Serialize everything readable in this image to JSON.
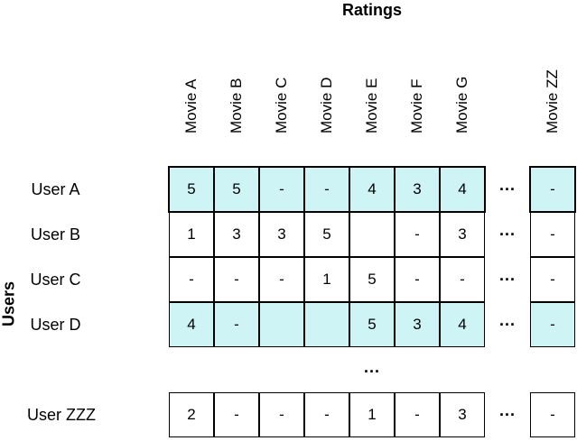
{
  "title_top": "Ratings",
  "title_left": "Users",
  "columns": [
    "Movie A",
    "Movie B",
    "Movie C",
    "Movie D",
    "Movie E",
    "Movie F",
    "Movie G"
  ],
  "last_column": "Movie ZZ",
  "ellipsis": "...",
  "highlight_color": "#cff4f5",
  "rows": [
    {
      "label": "User A",
      "values": [
        "5",
        "5",
        "-",
        "-",
        "4",
        "3",
        "4"
      ],
      "last": "-",
      "highlight": true,
      "bold_box": true
    },
    {
      "label": "User B",
      "values": [
        "1",
        "3",
        "3",
        "5",
        "",
        "-",
        "3"
      ],
      "last": "-",
      "highlight": false,
      "bold_box": false
    },
    {
      "label": "User C",
      "values": [
        "-",
        "-",
        "-",
        "1",
        "5",
        "-",
        "-"
      ],
      "last": "-",
      "highlight": false,
      "bold_box": false
    },
    {
      "label": "User D",
      "values": [
        "4",
        "-",
        "",
        "",
        "5",
        "3",
        "4"
      ],
      "last": "-",
      "highlight": true,
      "bold_box": false
    }
  ],
  "last_row": {
    "label": "User ZZZ",
    "values": [
      "2",
      "-",
      "-",
      "-",
      "1",
      "-",
      "3"
    ],
    "last": "-"
  }
}
